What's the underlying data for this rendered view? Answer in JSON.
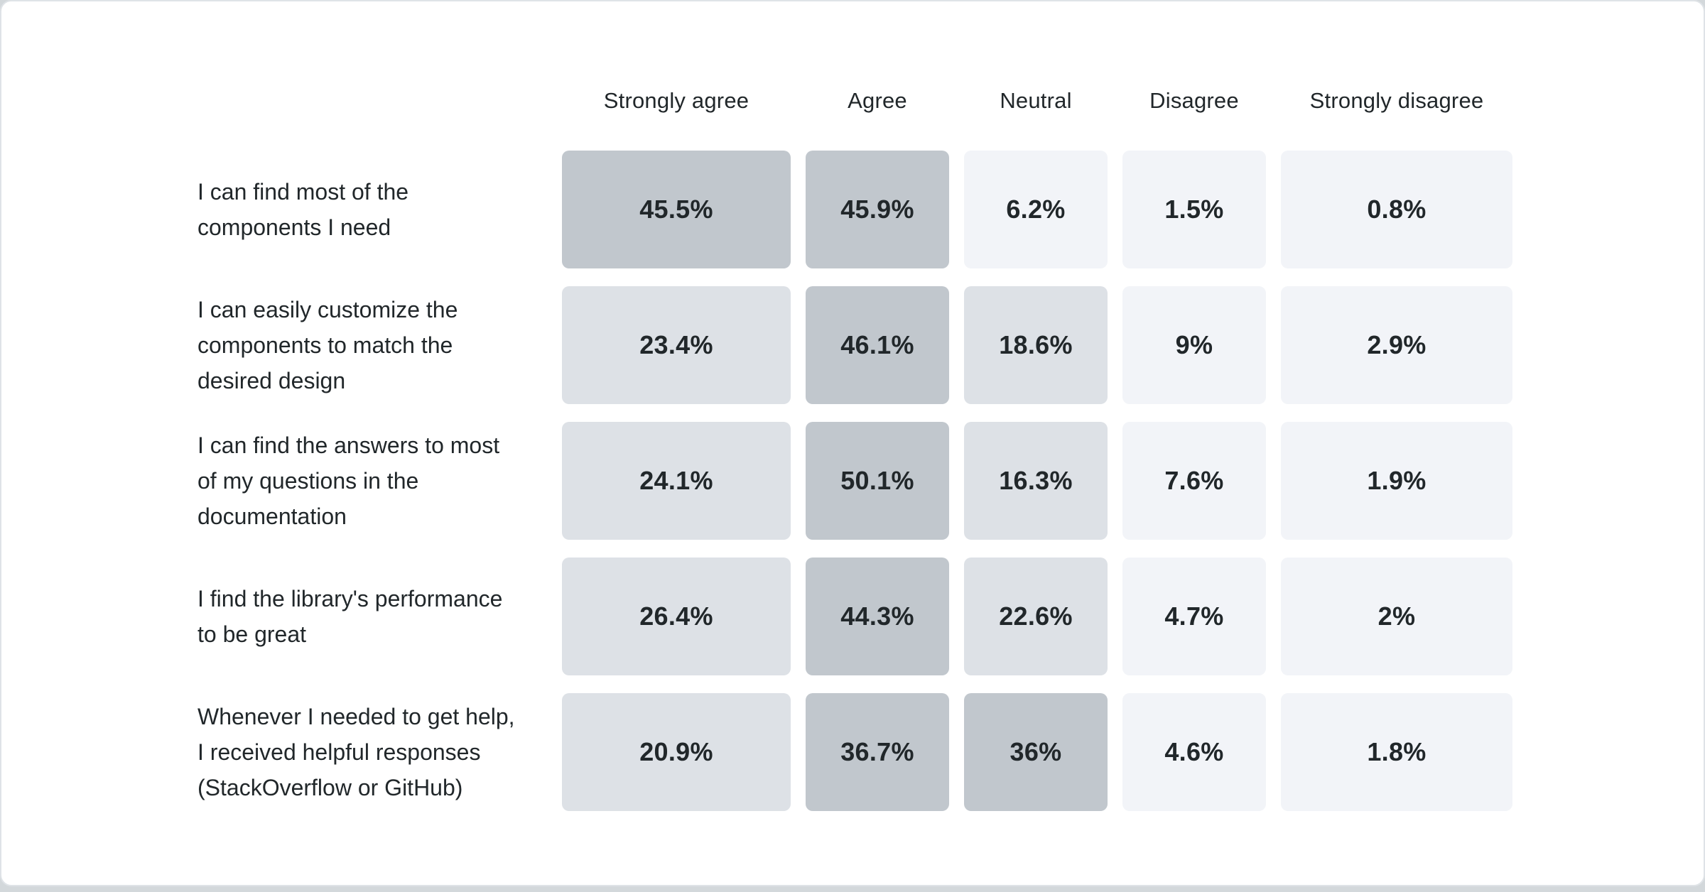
{
  "colors": {
    "text": "#21272a",
    "cell_high": "#c1c7cd",
    "cell_mid": "#dde1e6",
    "cell_low": "#f2f4f8",
    "card_bg": "#ffffff",
    "card_border": "#dfe3e7",
    "page_bg": "#d3d8db"
  },
  "columns": [
    "Strongly agree",
    "Agree",
    "Neutral",
    "Disagree",
    "Strongly disagree"
  ],
  "rows": [
    {
      "label_lines": [
        "I can find most of the",
        "components I need"
      ],
      "values": [
        "45.5%",
        "45.9%",
        "6.2%",
        "1.5%",
        "0.8%"
      ],
      "levels": [
        "high",
        "high",
        "low",
        "low",
        "low"
      ]
    },
    {
      "label_lines": [
        "I can easily customize the",
        "components to match the",
        "desired design"
      ],
      "values": [
        "23.4%",
        "46.1%",
        "18.6%",
        "9%",
        "2.9%"
      ],
      "levels": [
        "mid",
        "high",
        "mid",
        "low",
        "low"
      ]
    },
    {
      "label_lines": [
        "I can find the answers to most",
        "of my questions in the",
        "documentation"
      ],
      "values": [
        "24.1%",
        "50.1%",
        "16.3%",
        "7.6%",
        "1.9%"
      ],
      "levels": [
        "mid",
        "high",
        "mid",
        "low",
        "low"
      ]
    },
    {
      "label_lines": [
        "I find the library's performance",
        "to be great"
      ],
      "values": [
        "26.4%",
        "44.3%",
        "22.6%",
        "4.7%",
        "2%"
      ],
      "levels": [
        "mid",
        "high",
        "mid",
        "low",
        "low"
      ]
    },
    {
      "label_lines": [
        "Whenever I needed to get help,",
        "I received helpful responses",
        "(StackOverflow or GitHub)"
      ],
      "values": [
        "20.9%",
        "36.7%",
        "36%",
        "4.6%",
        "1.8%"
      ],
      "levels": [
        "mid",
        "high",
        "high",
        "low",
        "low"
      ]
    }
  ],
  "chart_data": {
    "type": "heatmap",
    "title": "",
    "categories": [
      "Strongly agree",
      "Agree",
      "Neutral",
      "Disagree",
      "Strongly disagree"
    ],
    "rows": [
      "I can find most of the components I need",
      "I can easily customize the components to match the desired design",
      "I can find the answers to most of my questions in the documentation",
      "I find the library's performance to be great",
      "Whenever I needed to get help, I received helpful responses (StackOverflow or GitHub)"
    ],
    "values_percent": [
      [
        45.5,
        45.9,
        6.2,
        1.5,
        0.8
      ],
      [
        23.4,
        46.1,
        18.6,
        9,
        2.9
      ],
      [
        24.1,
        50.1,
        16.3,
        7.6,
        1.9
      ],
      [
        26.4,
        44.3,
        22.6,
        4.7,
        2
      ],
      [
        20.9,
        36.7,
        36,
        4.6,
        1.8
      ]
    ],
    "legend_position": "none",
    "grid": false,
    "color_scale": {
      "high_above_30pct": "#c1c7cd",
      "mid_10_to_30pct": "#dde1e6",
      "low_below_10pct": "#f2f4f8"
    }
  }
}
